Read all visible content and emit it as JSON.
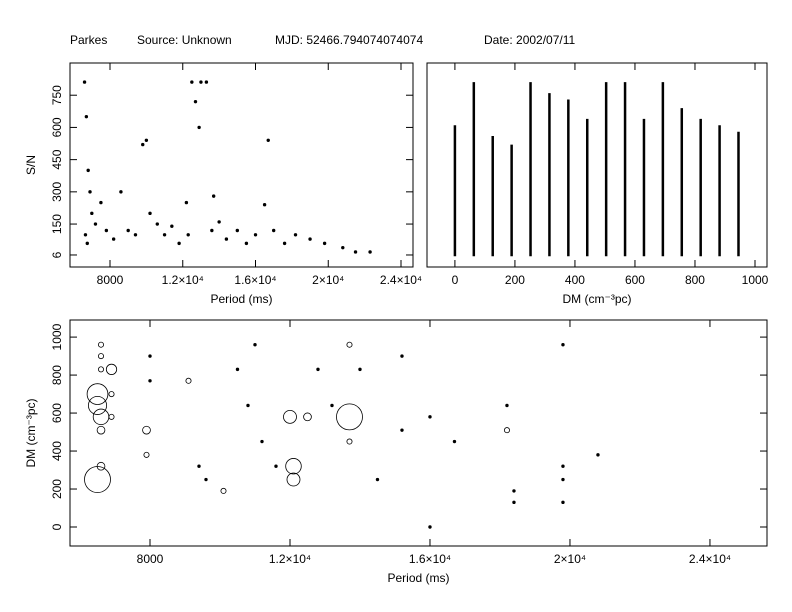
{
  "header": {
    "observatory": "Parkes",
    "source": "Source: Unknown",
    "mjd": "MJD: 52466.794074074074",
    "date": "Date: 2002/07/11"
  },
  "chart_data": [
    {
      "type": "scatter",
      "xlabel": "Period (ms)",
      "ylabel": "S/N",
      "xlim": [
        5800,
        24660
      ],
      "ylim": [
        -50,
        900
      ],
      "xticks": [
        8000,
        {
          "value": 12000,
          "label": "1.2×10⁴"
        },
        {
          "value": 16000,
          "label": "1.6×10⁴"
        },
        {
          "value": 20000,
          "label": "2×10⁴"
        },
        {
          "value": 24000,
          "label": "2.4×10⁴"
        }
      ],
      "yticks": [
        6,
        150,
        300,
        450,
        600,
        750
      ],
      "x": [
        6600,
        6700,
        6800,
        6900,
        7000,
        7200,
        7500,
        7800,
        8200,
        8600,
        9000,
        9400,
        9800,
        10000,
        10200,
        10600,
        11000,
        11400,
        11800,
        12200,
        12500,
        12700,
        13000,
        13300,
        13700,
        14000,
        14400,
        15000,
        15500,
        16000,
        16500,
        16700,
        17000,
        17600,
        18200,
        19000,
        19800,
        20800,
        21500,
        22300,
        6650,
        6750,
        12300,
        12900,
        13600
      ],
      "values": [
        811,
        650,
        400,
        300,
        200,
        150,
        250,
        120,
        80,
        300,
        120,
        100,
        520,
        540,
        200,
        150,
        100,
        140,
        60,
        250,
        811,
        720,
        811,
        811,
        280,
        160,
        80,
        120,
        60,
        100,
        240,
        540,
        120,
        60,
        100,
        80,
        60,
        40,
        20,
        20,
        100,
        60,
        100,
        600,
        120
      ]
    },
    {
      "type": "stem",
      "xlabel": "DM (cm⁻³pc)",
      "xlim": [
        -93,
        1040
      ],
      "ylim": [
        -50,
        900
      ],
      "xticks": [
        0,
        200,
        400,
        600,
        800,
        1000
      ],
      "x": [
        0,
        63,
        126,
        189,
        252,
        315,
        378,
        441,
        504,
        567,
        630,
        693,
        756,
        819,
        882,
        945
      ],
      "values": [
        610,
        811,
        560,
        520,
        811,
        760,
        730,
        640,
        811,
        811,
        640,
        811,
        690,
        640,
        610,
        580
      ]
    },
    {
      "type": "scatter",
      "xlabel": "Period (ms)",
      "ylabel": "DM (cm⁻³pc)",
      "xlim": [
        5714,
        25630
      ],
      "ylim": [
        -100,
        1090
      ],
      "xticks": [
        8000,
        {
          "value": 12000,
          "label": "1.2×10⁴"
        },
        {
          "value": 16000,
          "label": "1.6×10⁴"
        },
        {
          "value": 20000,
          "label": "2×10⁴"
        },
        {
          "value": 24000,
          "label": "2.4×10⁴"
        }
      ],
      "yticks": [
        0,
        200,
        400,
        600,
        800,
        1000
      ],
      "x": [
        6600,
        6600,
        6600,
        6500,
        6500,
        6600,
        6600,
        6600,
        6500,
        6900,
        6900,
        6900,
        7900,
        7900,
        8000,
        8000,
        9100,
        9400,
        9600,
        10100,
        10500,
        10800,
        11000,
        11200,
        11600,
        12000,
        12100,
        12100,
        12500,
        12800,
        13200,
        13700,
        13700,
        13700,
        14000,
        14500,
        15200,
        15200,
        16000,
        16000,
        16700,
        18200,
        18200,
        18400,
        18400,
        19800,
        19800,
        19800,
        19800,
        20800
      ],
      "values": [
        960,
        900,
        830,
        700,
        640,
        580,
        510,
        320,
        250,
        830,
        700,
        580,
        510,
        380,
        900,
        770,
        770,
        320,
        250,
        190,
        830,
        640,
        960,
        450,
        320,
        580,
        320,
        250,
        580,
        830,
        640,
        580,
        450,
        960,
        830,
        250,
        900,
        510,
        580,
        0,
        450,
        640,
        510,
        190,
        130,
        960,
        320,
        250,
        130,
        380
      ],
      "sizes": [
        2,
        2,
        2,
        8,
        7,
        6,
        3,
        3,
        10,
        4,
        2,
        2,
        3,
        2,
        1,
        1,
        2,
        1,
        1,
        2,
        1,
        1,
        1,
        1,
        1,
        5,
        6,
        5,
        3,
        1,
        1,
        10,
        2,
        2,
        1,
        1,
        1,
        1,
        1,
        1,
        1,
        1,
        2,
        1,
        1,
        1,
        1,
        1,
        1,
        1
      ]
    }
  ]
}
